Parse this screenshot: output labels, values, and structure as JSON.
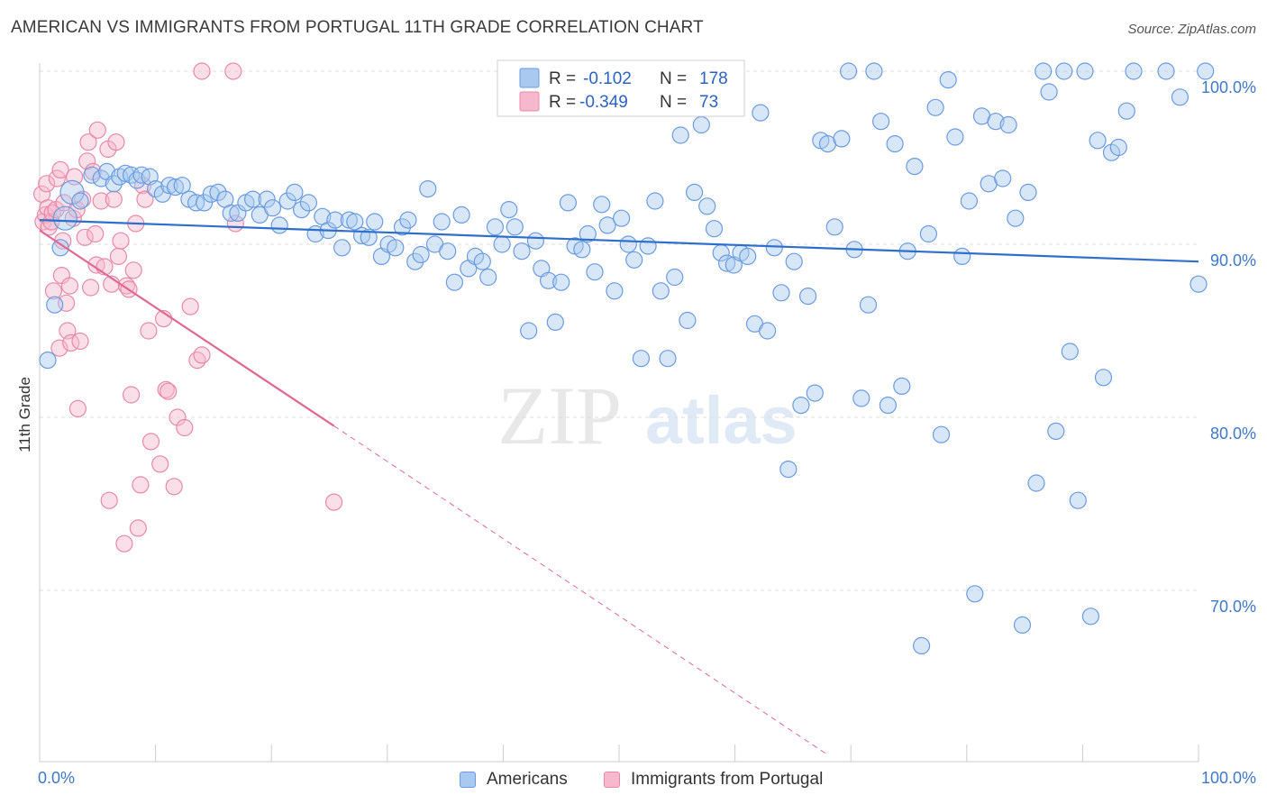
{
  "title": "AMERICAN VS IMMIGRANTS FROM PORTUGAL 11TH GRADE CORRELATION CHART",
  "source": "Source: ZipAtlas.com",
  "watermark": {
    "zip": "ZIP",
    "atlas": "atlas"
  },
  "legend": {
    "rows": [
      {
        "r_label": "R =",
        "r_value": "-0.102",
        "n_label": "N =",
        "n_value": "178"
      },
      {
        "r_label": "R =",
        "r_value": "-0.349",
        "n_label": "N =",
        "n_value": "73"
      }
    ]
  },
  "bottom_legend": {
    "americans": "Americans",
    "portugal": "Immigrants from Portugal"
  },
  "colors": {
    "americans_fill": "#a9c9f0",
    "americans_stroke": "#6a9be0",
    "americans_line": "#2f6fcc",
    "portugal_fill": "#f6b8cc",
    "portugal_stroke": "#e888a8",
    "portugal_line": "#e06892",
    "tick_label": "#3d78c9",
    "grid": "#dddddd"
  },
  "chart_data": {
    "type": "scatter",
    "title": "AMERICAN VS IMMIGRANTS FROM PORTUGAL 11TH GRADE CORRELATION CHART",
    "xlabel": "",
    "ylabel": "11th Grade",
    "xlim": [
      0,
      100
    ],
    "ylim": [
      60,
      101
    ],
    "x_tick_labels": [
      "0.0%",
      "100.0%"
    ],
    "y_ticks": [
      {
        "value": 100,
        "label": "100.0%"
      },
      {
        "value": 90,
        "label": "90.0%"
      },
      {
        "value": 80,
        "label": "80.0%"
      },
      {
        "value": 70,
        "label": "70.0%"
      }
    ],
    "series": [
      {
        "name": "Americans",
        "r": -0.102,
        "n": 178,
        "trend": {
          "x": [
            0,
            100
          ],
          "y": [
            91.4,
            89.0
          ]
        },
        "points": [
          [
            0.7,
            83.3
          ],
          [
            1.3,
            86.5
          ],
          [
            1.8,
            89.8
          ],
          [
            2.2,
            91.5
          ],
          [
            2.8,
            93.0
          ],
          [
            3.5,
            92.5
          ],
          [
            4.5,
            94.0
          ],
          [
            5.3,
            93.8
          ],
          [
            5.8,
            94.2
          ],
          [
            6.4,
            93.5
          ],
          [
            6.9,
            93.9
          ],
          [
            7.4,
            94.1
          ],
          [
            7.9,
            94.0
          ],
          [
            8.4,
            93.7
          ],
          [
            8.8,
            94.0
          ],
          [
            9.5,
            93.9
          ],
          [
            10.0,
            93.2
          ],
          [
            10.6,
            92.9
          ],
          [
            11.2,
            93.4
          ],
          [
            11.7,
            93.3
          ],
          [
            12.3,
            93.4
          ],
          [
            12.9,
            92.6
          ],
          [
            13.5,
            92.4
          ],
          [
            14.2,
            92.4
          ],
          [
            14.8,
            92.9
          ],
          [
            15.4,
            93.0
          ],
          [
            16.0,
            92.6
          ],
          [
            16.5,
            91.8
          ],
          [
            17.1,
            91.8
          ],
          [
            17.8,
            92.4
          ],
          [
            18.4,
            92.6
          ],
          [
            19.0,
            91.7
          ],
          [
            19.6,
            92.6
          ],
          [
            20.1,
            92.1
          ],
          [
            20.7,
            91.1
          ],
          [
            21.4,
            92.5
          ],
          [
            22.0,
            93.0
          ],
          [
            22.6,
            92.0
          ],
          [
            23.2,
            92.4
          ],
          [
            23.8,
            90.6
          ],
          [
            24.4,
            91.6
          ],
          [
            24.9,
            90.8
          ],
          [
            25.5,
            91.4
          ],
          [
            26.1,
            89.8
          ],
          [
            26.7,
            91.4
          ],
          [
            27.2,
            91.3
          ],
          [
            27.8,
            90.5
          ],
          [
            28.4,
            90.4
          ],
          [
            28.9,
            91.3
          ],
          [
            29.5,
            89.3
          ],
          [
            30.1,
            90.0
          ],
          [
            30.7,
            89.8
          ],
          [
            31.3,
            91.0
          ],
          [
            31.8,
            91.4
          ],
          [
            32.4,
            89.0
          ],
          [
            32.9,
            89.4
          ],
          [
            33.5,
            93.2
          ],
          [
            34.1,
            90.0
          ],
          [
            34.7,
            91.3
          ],
          [
            35.2,
            89.6
          ],
          [
            35.8,
            87.8
          ],
          [
            36.4,
            91.7
          ],
          [
            37.0,
            88.6
          ],
          [
            37.6,
            89.3
          ],
          [
            38.2,
            89.0
          ],
          [
            38.7,
            88.1
          ],
          [
            39.3,
            91.0
          ],
          [
            39.9,
            90.0
          ],
          [
            40.5,
            92.0
          ],
          [
            41.0,
            91.0
          ],
          [
            41.6,
            89.6
          ],
          [
            42.2,
            85.0
          ],
          [
            42.8,
            90.2
          ],
          [
            43.3,
            88.6
          ],
          [
            43.9,
            87.9
          ],
          [
            44.5,
            85.5
          ],
          [
            45.0,
            87.8
          ],
          [
            45.6,
            92.4
          ],
          [
            46.2,
            89.9
          ],
          [
            46.8,
            89.7
          ],
          [
            47.3,
            90.6
          ],
          [
            47.9,
            88.4
          ],
          [
            48.5,
            92.3
          ],
          [
            49.0,
            91.1
          ],
          [
            49.6,
            87.3
          ],
          [
            50.2,
            91.5
          ],
          [
            50.8,
            90.0
          ],
          [
            51.3,
            89.1
          ],
          [
            51.9,
            83.4
          ],
          [
            52.5,
            89.9
          ],
          [
            53.1,
            92.5
          ],
          [
            53.6,
            87.3
          ],
          [
            54.2,
            83.4
          ],
          [
            54.8,
            88.1
          ],
          [
            55.3,
            96.3
          ],
          [
            55.9,
            85.6
          ],
          [
            56.5,
            93.0
          ],
          [
            57.1,
            96.9
          ],
          [
            57.6,
            92.2
          ],
          [
            58.2,
            90.9
          ],
          [
            58.8,
            89.5
          ],
          [
            59.3,
            88.9
          ],
          [
            59.9,
            88.8
          ],
          [
            60.5,
            89.5
          ],
          [
            61.1,
            89.3
          ],
          [
            61.7,
            85.4
          ],
          [
            62.2,
            97.6
          ],
          [
            62.8,
            85.0
          ],
          [
            63.4,
            89.8
          ],
          [
            64.0,
            87.2
          ],
          [
            64.6,
            77.0
          ],
          [
            65.1,
            89.0
          ],
          [
            65.7,
            80.7
          ],
          [
            66.3,
            87.0
          ],
          [
            66.9,
            81.4
          ],
          [
            67.4,
            96.0
          ],
          [
            68.0,
            95.8
          ],
          [
            68.6,
            91.0
          ],
          [
            69.2,
            96.1
          ],
          [
            69.8,
            100.0
          ],
          [
            70.3,
            89.7
          ],
          [
            70.9,
            81.1
          ],
          [
            71.5,
            86.5
          ],
          [
            72.0,
            100.0
          ],
          [
            72.6,
            97.1
          ],
          [
            73.2,
            80.7
          ],
          [
            73.8,
            95.8
          ],
          [
            74.4,
            81.8
          ],
          [
            74.9,
            89.6
          ],
          [
            75.5,
            94.5
          ],
          [
            76.1,
            66.8
          ],
          [
            76.7,
            90.6
          ],
          [
            77.3,
            97.9
          ],
          [
            77.8,
            79.0
          ],
          [
            78.4,
            99.5
          ],
          [
            79.0,
            96.2
          ],
          [
            79.6,
            89.3
          ],
          [
            80.2,
            92.5
          ],
          [
            80.7,
            69.8
          ],
          [
            81.3,
            97.4
          ],
          [
            81.9,
            93.5
          ],
          [
            82.5,
            97.1
          ],
          [
            83.1,
            93.8
          ],
          [
            83.6,
            96.9
          ],
          [
            84.2,
            91.5
          ],
          [
            84.8,
            68.0
          ],
          [
            85.3,
            93.0
          ],
          [
            86.0,
            76.2
          ],
          [
            86.6,
            100.0
          ],
          [
            87.1,
            98.8
          ],
          [
            87.7,
            79.2
          ],
          [
            88.4,
            100.0
          ],
          [
            88.9,
            83.8
          ],
          [
            89.6,
            75.2
          ],
          [
            90.2,
            100.0
          ],
          [
            90.7,
            68.5
          ],
          [
            91.3,
            96.0
          ],
          [
            91.8,
            82.3
          ],
          [
            92.5,
            95.3
          ],
          [
            93.1,
            95.6
          ],
          [
            93.8,
            97.7
          ],
          [
            94.4,
            100.0
          ],
          [
            97.2,
            100.0
          ],
          [
            98.4,
            98.5
          ],
          [
            100.0,
            87.7
          ],
          [
            100.6,
            100.0
          ]
        ]
      },
      {
        "name": "Immigrants from Portugal",
        "r": -0.349,
        "n": 73,
        "trend": {
          "x": [
            0,
            25.4
          ],
          "y": [
            90.8,
            79.5
          ]
        },
        "trend_extension": {
          "x": [
            25.4,
            68
          ],
          "y": [
            79.5,
            60.5
          ]
        },
        "points": [
          [
            0.2,
            92.9
          ],
          [
            0.3,
            91.3
          ],
          [
            0.5,
            91.7
          ],
          [
            0.6,
            93.5
          ],
          [
            0.7,
            92.1
          ],
          [
            0.8,
            91.0
          ],
          [
            1.0,
            91.3
          ],
          [
            1.1,
            91.8
          ],
          [
            1.2,
            87.3
          ],
          [
            1.4,
            92.0
          ],
          [
            1.5,
            93.8
          ],
          [
            1.7,
            84.0
          ],
          [
            1.8,
            94.3
          ],
          [
            1.9,
            88.2
          ],
          [
            2.0,
            90.2
          ],
          [
            2.1,
            92.4
          ],
          [
            2.3,
            86.6
          ],
          [
            2.4,
            85.0
          ],
          [
            2.6,
            87.6
          ],
          [
            2.7,
            84.3
          ],
          [
            2.9,
            91.5
          ],
          [
            3.0,
            93.9
          ],
          [
            3.2,
            92.0
          ],
          [
            3.3,
            80.5
          ],
          [
            3.5,
            84.4
          ],
          [
            3.7,
            92.6
          ],
          [
            3.9,
            90.4
          ],
          [
            4.1,
            94.8
          ],
          [
            4.2,
            95.9
          ],
          [
            4.4,
            87.5
          ],
          [
            4.6,
            94.2
          ],
          [
            4.8,
            90.6
          ],
          [
            4.9,
            88.8
          ],
          [
            5.0,
            96.6
          ],
          [
            5.3,
            92.5
          ],
          [
            5.6,
            88.7
          ],
          [
            5.9,
            95.5
          ],
          [
            6.0,
            75.2
          ],
          [
            6.2,
            87.7
          ],
          [
            6.4,
            92.6
          ],
          [
            6.6,
            95.9
          ],
          [
            6.8,
            89.3
          ],
          [
            7.0,
            90.2
          ],
          [
            7.3,
            72.7
          ],
          [
            7.5,
            87.6
          ],
          [
            7.7,
            87.4
          ],
          [
            7.9,
            81.3
          ],
          [
            8.1,
            88.5
          ],
          [
            8.3,
            91.2
          ],
          [
            8.5,
            73.6
          ],
          [
            8.7,
            76.1
          ],
          [
            8.9,
            93.4
          ],
          [
            9.1,
            92.6
          ],
          [
            9.4,
            85.0
          ],
          [
            9.6,
            78.6
          ],
          [
            10.4,
            77.3
          ],
          [
            10.9,
            81.6
          ],
          [
            10.7,
            85.7
          ],
          [
            11.1,
            81.5
          ],
          [
            11.6,
            76.0
          ],
          [
            11.9,
            80.0
          ],
          [
            12.5,
            79.4
          ],
          [
            13.0,
            86.4
          ],
          [
            13.6,
            83.3
          ],
          [
            14.0,
            83.6
          ],
          [
            14.0,
            100.0
          ],
          [
            16.7,
            100.0
          ],
          [
            16.9,
            91.2
          ],
          [
            25.4,
            75.1
          ]
        ]
      }
    ]
  }
}
